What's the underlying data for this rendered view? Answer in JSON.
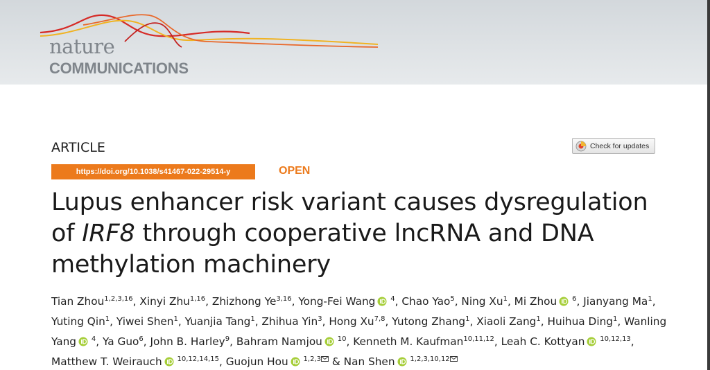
{
  "journal": {
    "name_top": "nature",
    "name_bottom": "COMMUNICATIONS"
  },
  "article_type": "ARTICLE",
  "doi": "https://doi.org/10.1038/s41467-022-29514-y",
  "access": "OPEN",
  "check_updates": "Check for updates",
  "title": [
    "Lupus enhancer risk variant causes dysregulation of ",
    "IRF8",
    " through cooperative lncRNA and DNA methylation machinery"
  ],
  "author_separator": ", ",
  "last_author_separator": " & ",
  "authors": [
    {
      "name": "Tian Zhou",
      "affiliations": "1,2,3,16"
    },
    {
      "name": "Xinyi Zhu",
      "affiliations": "1,16"
    },
    {
      "name": "Zhizhong Ye",
      "affiliations": "3,16"
    },
    {
      "name": "Yong-Fei Wang",
      "affiliations": "4",
      "orcid": true
    },
    {
      "name": "Chao Yao",
      "affiliations": "5"
    },
    {
      "name": "Ning Xu",
      "affiliations": "1"
    },
    {
      "name": "Mi Zhou",
      "affiliations": "6",
      "orcid": true
    },
    {
      "name": "Jianyang Ma",
      "affiliations": "1"
    },
    {
      "name": "Yuting Qin",
      "affiliations": "1"
    },
    {
      "name": "Yiwei Shen",
      "affiliations": "1"
    },
    {
      "name": "Yuanjia Tang",
      "affiliations": "1"
    },
    {
      "name": "Zhihua Yin",
      "affiliations": "3"
    },
    {
      "name": "Hong Xu",
      "affiliations": "7,8"
    },
    {
      "name": "Yutong Zhang",
      "affiliations": "1"
    },
    {
      "name": "Xiaoli Zang",
      "affiliations": "1"
    },
    {
      "name": "Huihua Ding",
      "affiliations": "1"
    },
    {
      "name": "Wanling Yang",
      "affiliations": "4",
      "orcid": true
    },
    {
      "name": "Ya Guo",
      "affiliations": "6"
    },
    {
      "name": "John B. Harley",
      "affiliations": "9"
    },
    {
      "name": "Bahram Namjou",
      "affiliations": "10",
      "orcid": true
    },
    {
      "name": "Kenneth M. Kaufman",
      "affiliations": "10,11,12"
    },
    {
      "name": "Leah C. Kottyan",
      "affiliations": "10,12,13",
      "orcid": true
    },
    {
      "name": "Matthew T. Weirauch",
      "affiliations": "10,12,14,15",
      "orcid": true
    },
    {
      "name": "Guojun Hou",
      "affiliations": "1,2,3",
      "orcid": true,
      "corresponding": true
    },
    {
      "name": "Nan Shen",
      "affiliations": "1,2,3,10,12",
      "orcid": true,
      "corresponding": true
    }
  ]
}
